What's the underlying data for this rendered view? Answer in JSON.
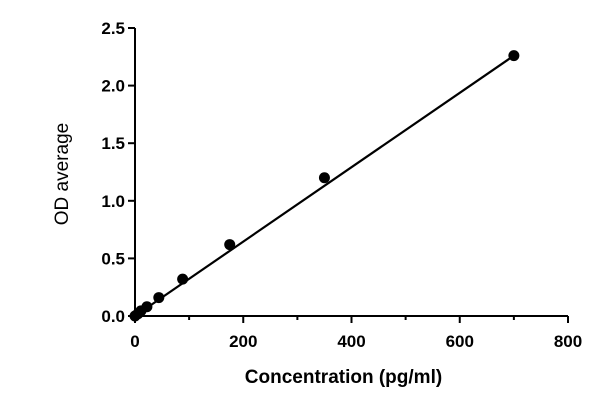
{
  "chart_data": {
    "type": "scatter",
    "xlabel": "Concentration (pg/ml)",
    "ylabel": "OD average",
    "xlim": [
      0,
      800
    ],
    "ylim": [
      0,
      2.5
    ],
    "x_ticks": [
      "0",
      "200",
      "400",
      "600",
      "800"
    ],
    "y_ticks": [
      "0.0",
      "0.5",
      "1.0",
      "1.5",
      "2.0",
      "2.5"
    ],
    "grid": false,
    "legend": "none",
    "series": [
      {
        "points": [
          {
            "x": 0,
            "y": 0.0
          },
          {
            "x": 5.5,
            "y": 0.02
          },
          {
            "x": 11,
            "y": 0.045
          },
          {
            "x": 22,
            "y": 0.08
          },
          {
            "x": 44,
            "y": 0.16
          },
          {
            "x": 88,
            "y": 0.32
          },
          {
            "x": 175,
            "y": 0.62
          },
          {
            "x": 350,
            "y": 1.2
          },
          {
            "x": 700,
            "y": 2.26
          }
        ],
        "fit_line": {
          "x_start": 0,
          "y_start": 0.0,
          "x_end": 700,
          "y_end": 2.26
        }
      }
    ],
    "colors": {
      "marker": "#000000",
      "line": "#000000",
      "axis": "#000000"
    }
  }
}
